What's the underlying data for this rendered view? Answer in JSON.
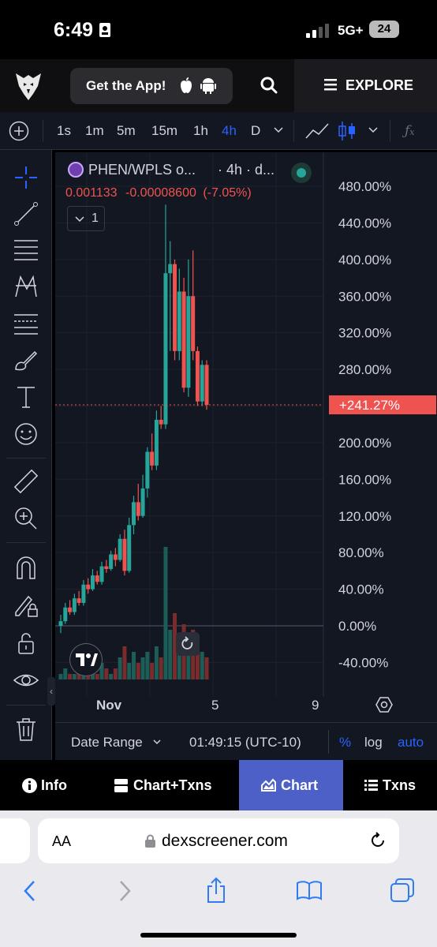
{
  "status": {
    "time": "6:49",
    "network": "5G+",
    "battery": "24"
  },
  "appbar": {
    "get_app": "Get the App!",
    "explore": "EXPLORE"
  },
  "timeframes": [
    "1s",
    "1m",
    "5m",
    "15m",
    "1h",
    "4h",
    "D"
  ],
  "active_timeframe": "4h",
  "legend": {
    "symbol": "PHEN/WPLS o...",
    "interval": "· 4h · d...",
    "price": "0.001133",
    "change": "-0.00008600",
    "change_pct": "(-7.05%)",
    "indicator_count": "1"
  },
  "price_badge": "+241.27%",
  "chart_data": {
    "type": "candlestick",
    "y_axis_labels": [
      "480.00%",
      "440.00%",
      "400.00%",
      "360.00%",
      "320.00%",
      "280.00%",
      "200.00%",
      "160.00%",
      "120.00%",
      "80.00%",
      "40.00%",
      "0.00%",
      "-40.00%"
    ],
    "x_axis_labels": [
      "Nov",
      "5",
      "9"
    ],
    "ylim": [
      -50,
      490
    ],
    "last_value": 241.27,
    "colors": {
      "up": "#26a69a",
      "down": "#ef5350"
    },
    "candles": [
      [
        0,
        5,
        -8,
        12,
        -10
      ],
      [
        5,
        20,
        2,
        25,
        0
      ],
      [
        20,
        15,
        12,
        28,
        10
      ],
      [
        15,
        30,
        12,
        35,
        10
      ],
      [
        30,
        25,
        22,
        38,
        20
      ],
      [
        25,
        45,
        22,
        50,
        20
      ],
      [
        45,
        40,
        35,
        52,
        32
      ],
      [
        40,
        55,
        38,
        62,
        35
      ],
      [
        55,
        48,
        45,
        60,
        42
      ],
      [
        48,
        65,
        45,
        70,
        42
      ],
      [
        65,
        62,
        58,
        72,
        55
      ],
      [
        62,
        78,
        60,
        82,
        58
      ],
      [
        78,
        72,
        65,
        85,
        62
      ],
      [
        72,
        95,
        70,
        100,
        65
      ],
      [
        95,
        60,
        55,
        105,
        50
      ],
      [
        60,
        110,
        58,
        118,
        55
      ],
      [
        110,
        135,
        100,
        142,
        95
      ],
      [
        135,
        120,
        115,
        155,
        110
      ],
      [
        120,
        150,
        118,
        165,
        112
      ],
      [
        150,
        190,
        140,
        195,
        135
      ],
      [
        190,
        175,
        170,
        210,
        165
      ],
      [
        175,
        225,
        170,
        235,
        165
      ],
      [
        225,
        220,
        215,
        240,
        210
      ],
      [
        220,
        385,
        215,
        460,
        210
      ],
      [
        385,
        395,
        300,
        420,
        290
      ],
      [
        395,
        300,
        290,
        400,
        280
      ],
      [
        300,
        365,
        290,
        390,
        285
      ],
      [
        365,
        260,
        255,
        380,
        250
      ],
      [
        260,
        360,
        250,
        400,
        240
      ],
      [
        360,
        300,
        290,
        410,
        280
      ],
      [
        300,
        245,
        240,
        305,
        235
      ],
      [
        245,
        285,
        240,
        290,
        235
      ],
      [
        285,
        241.27,
        236,
        290,
        230
      ]
    ]
  },
  "date_range": {
    "label": "Date Range",
    "time": "01:49:15 (UTC-10)",
    "pct": "%",
    "log": "log",
    "auto": "auto"
  },
  "tabs": [
    "Info",
    "Chart+Txns",
    "Chart",
    "Txns"
  ],
  "active_tab": "Chart",
  "safari": {
    "aa": "AA",
    "url": "dexscreener.com"
  }
}
